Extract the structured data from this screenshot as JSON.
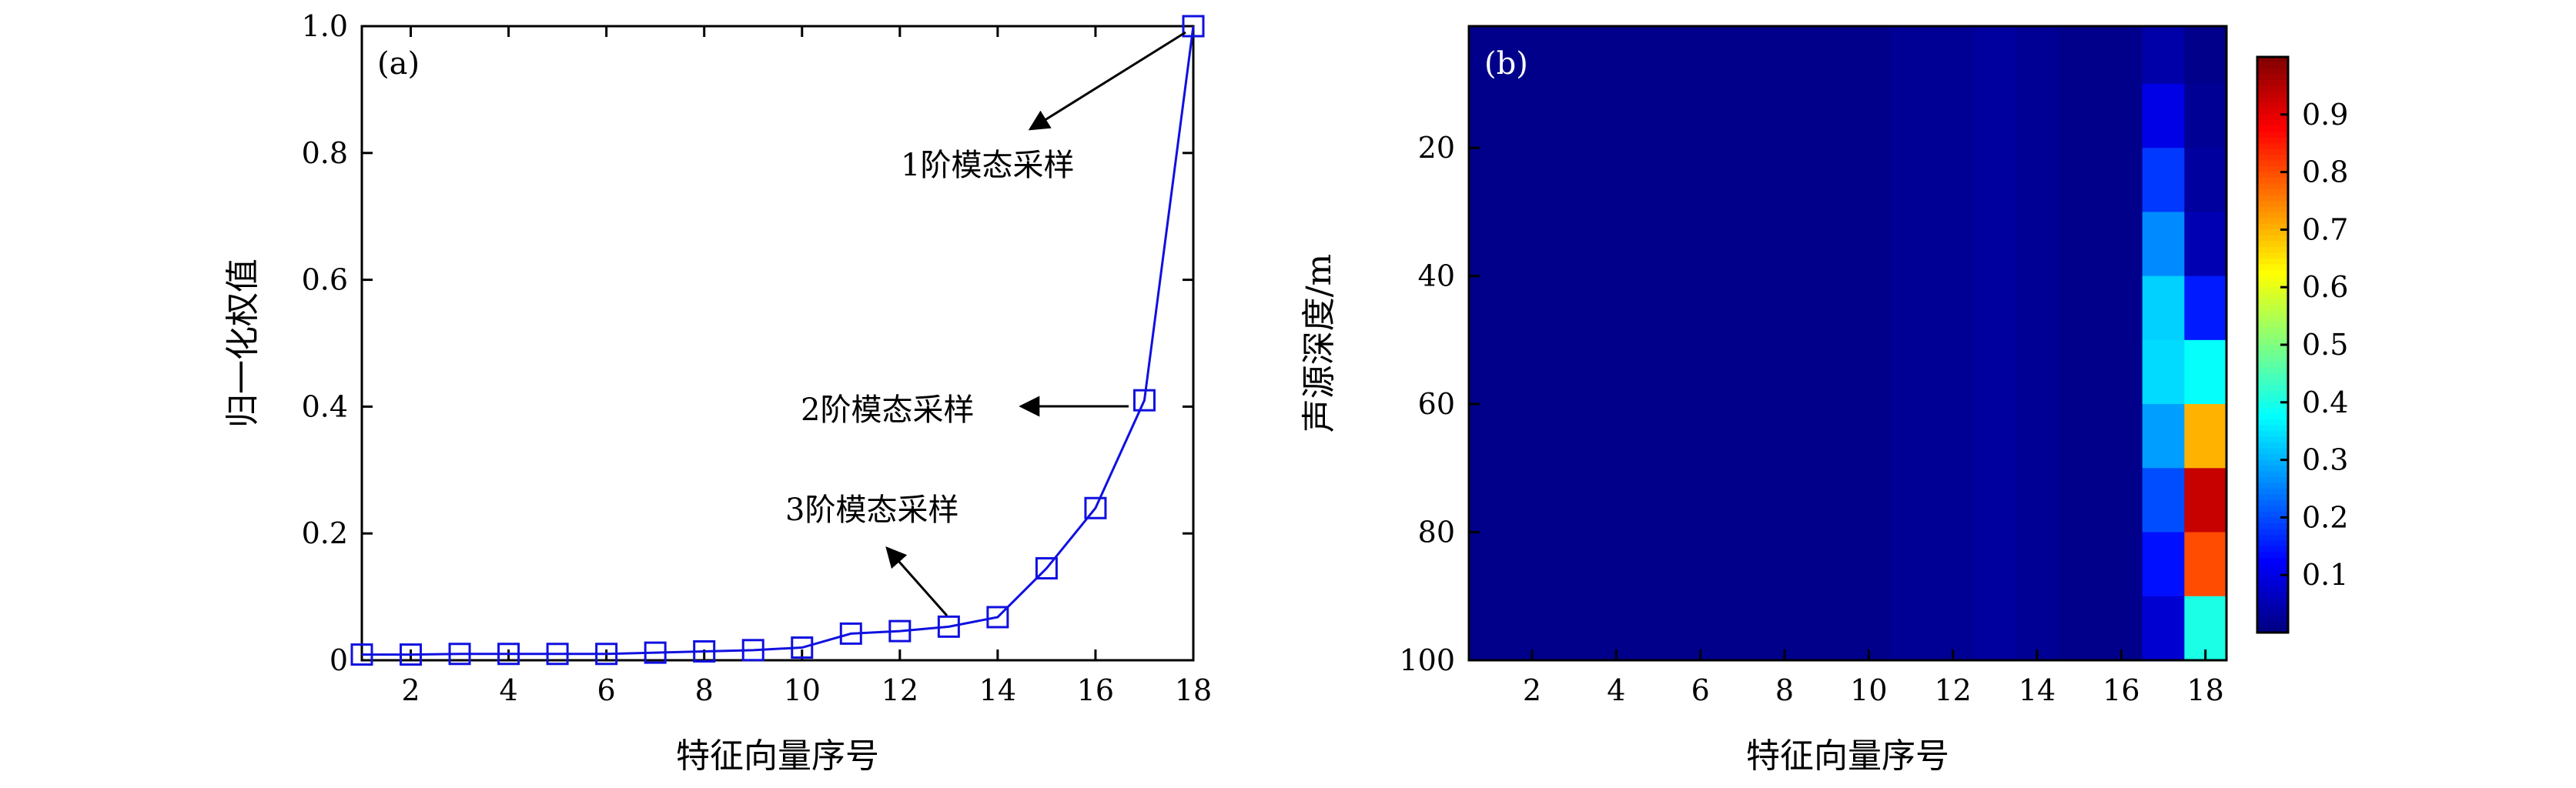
{
  "chart_data": [
    {
      "type": "line",
      "panel_label": "(a)",
      "xlabel": "特征向量序号",
      "ylabel": "归一化权值",
      "xlim": [
        1,
        18
      ],
      "ylim": [
        0,
        1.0
      ],
      "x_ticks": [
        2,
        4,
        6,
        8,
        10,
        12,
        14,
        16,
        18
      ],
      "x_tick_labels": [
        "2",
        "4",
        "6",
        "8",
        "10",
        "12",
        "14",
        "16",
        "18"
      ],
      "y_ticks": [
        0,
        0.2,
        0.4,
        0.6,
        0.8,
        1.0
      ],
      "y_tick_labels": [
        "0",
        "0.2",
        "0.4",
        "0.6",
        "0.8",
        "1.0"
      ],
      "grid": false,
      "series": [
        {
          "color": "#1010e0",
          "marker": "square",
          "x": [
            1,
            2,
            3,
            4,
            5,
            6,
            7,
            8,
            9,
            10,
            11,
            12,
            13,
            14,
            15,
            16,
            17,
            18
          ],
          "y": [
            0.009,
            0.009,
            0.01,
            0.01,
            0.01,
            0.01,
            0.012,
            0.014,
            0.016,
            0.02,
            0.042,
            0.046,
            0.053,
            0.068,
            0.145,
            0.24,
            0.41,
            1.0
          ]
        }
      ],
      "annotations": [
        {
          "text": "1阶模态采样",
          "x": 18,
          "y": 1.0
        },
        {
          "text": "2阶模态采样",
          "x": 17,
          "y": 0.41
        },
        {
          "text": "3阶模态采样",
          "x": 13,
          "y": 0.053
        }
      ]
    },
    {
      "type": "heatmap",
      "panel_label": "(b)",
      "xlabel": "特征向量序号",
      "ylabel": "声源深度/m",
      "x_categories": [
        1,
        2,
        3,
        4,
        5,
        6,
        7,
        8,
        9,
        10,
        11,
        12,
        13,
        14,
        15,
        16,
        17,
        18
      ],
      "x_ticks": [
        2,
        4,
        6,
        8,
        10,
        12,
        14,
        16,
        18
      ],
      "x_tick_labels": [
        "2",
        "4",
        "6",
        "8",
        "10",
        "12",
        "14",
        "16",
        "18"
      ],
      "y_range": [
        1,
        100
      ],
      "y_ticks": [
        20,
        40,
        60,
        80,
        100
      ],
      "y_tick_labels": [
        "20",
        "40",
        "60",
        "80",
        "100"
      ],
      "colormap": "jet",
      "color_range": [
        0,
        1
      ],
      "colorbar_ticks": [
        0.1,
        0.2,
        0.3,
        0.4,
        0.5,
        0.6,
        0.7,
        0.8,
        0.9
      ],
      "colorbar_tick_labels": [
        "0.1",
        "0.2",
        "0.3",
        "0.4",
        "0.5",
        "0.6",
        "0.7",
        "0.8",
        "0.9"
      ],
      "depth_m": [
        5,
        15,
        25,
        35,
        45,
        55,
        65,
        75,
        85,
        95
      ],
      "values": [
        [
          0.01,
          0.01,
          0.01,
          0.01,
          0.01,
          0.01,
          0.01,
          0.01,
          0.01,
          0.01,
          0.02,
          0.02,
          0.03,
          0.02,
          0.01,
          0.01,
          0.04,
          0.01
        ],
        [
          0.01,
          0.01,
          0.01,
          0.01,
          0.01,
          0.01,
          0.01,
          0.01,
          0.01,
          0.01,
          0.02,
          0.02,
          0.03,
          0.02,
          0.01,
          0.01,
          0.1,
          0.02
        ],
        [
          0.01,
          0.01,
          0.01,
          0.01,
          0.01,
          0.01,
          0.01,
          0.01,
          0.01,
          0.01,
          0.02,
          0.02,
          0.03,
          0.02,
          0.01,
          0.01,
          0.18,
          0.03
        ],
        [
          0.01,
          0.01,
          0.01,
          0.01,
          0.01,
          0.01,
          0.01,
          0.01,
          0.01,
          0.01,
          0.02,
          0.02,
          0.03,
          0.02,
          0.01,
          0.01,
          0.26,
          0.05
        ],
        [
          0.01,
          0.01,
          0.01,
          0.01,
          0.01,
          0.01,
          0.01,
          0.01,
          0.01,
          0.01,
          0.02,
          0.02,
          0.03,
          0.02,
          0.01,
          0.01,
          0.33,
          0.15
        ],
        [
          0.01,
          0.01,
          0.01,
          0.01,
          0.01,
          0.01,
          0.01,
          0.01,
          0.01,
          0.01,
          0.02,
          0.02,
          0.03,
          0.02,
          0.01,
          0.01,
          0.34,
          0.38
        ],
        [
          0.01,
          0.01,
          0.01,
          0.01,
          0.01,
          0.01,
          0.01,
          0.01,
          0.01,
          0.01,
          0.02,
          0.02,
          0.03,
          0.02,
          0.01,
          0.01,
          0.28,
          0.7
        ],
        [
          0.01,
          0.01,
          0.01,
          0.01,
          0.01,
          0.01,
          0.01,
          0.01,
          0.01,
          0.01,
          0.02,
          0.02,
          0.03,
          0.02,
          0.01,
          0.01,
          0.2,
          0.93
        ],
        [
          0.01,
          0.01,
          0.01,
          0.01,
          0.01,
          0.01,
          0.01,
          0.01,
          0.01,
          0.01,
          0.02,
          0.02,
          0.03,
          0.02,
          0.01,
          0.01,
          0.14,
          0.8
        ],
        [
          0.01,
          0.01,
          0.01,
          0.01,
          0.01,
          0.01,
          0.01,
          0.01,
          0.01,
          0.01,
          0.02,
          0.02,
          0.03,
          0.02,
          0.01,
          0.01,
          0.08,
          0.4
        ]
      ]
    }
  ]
}
